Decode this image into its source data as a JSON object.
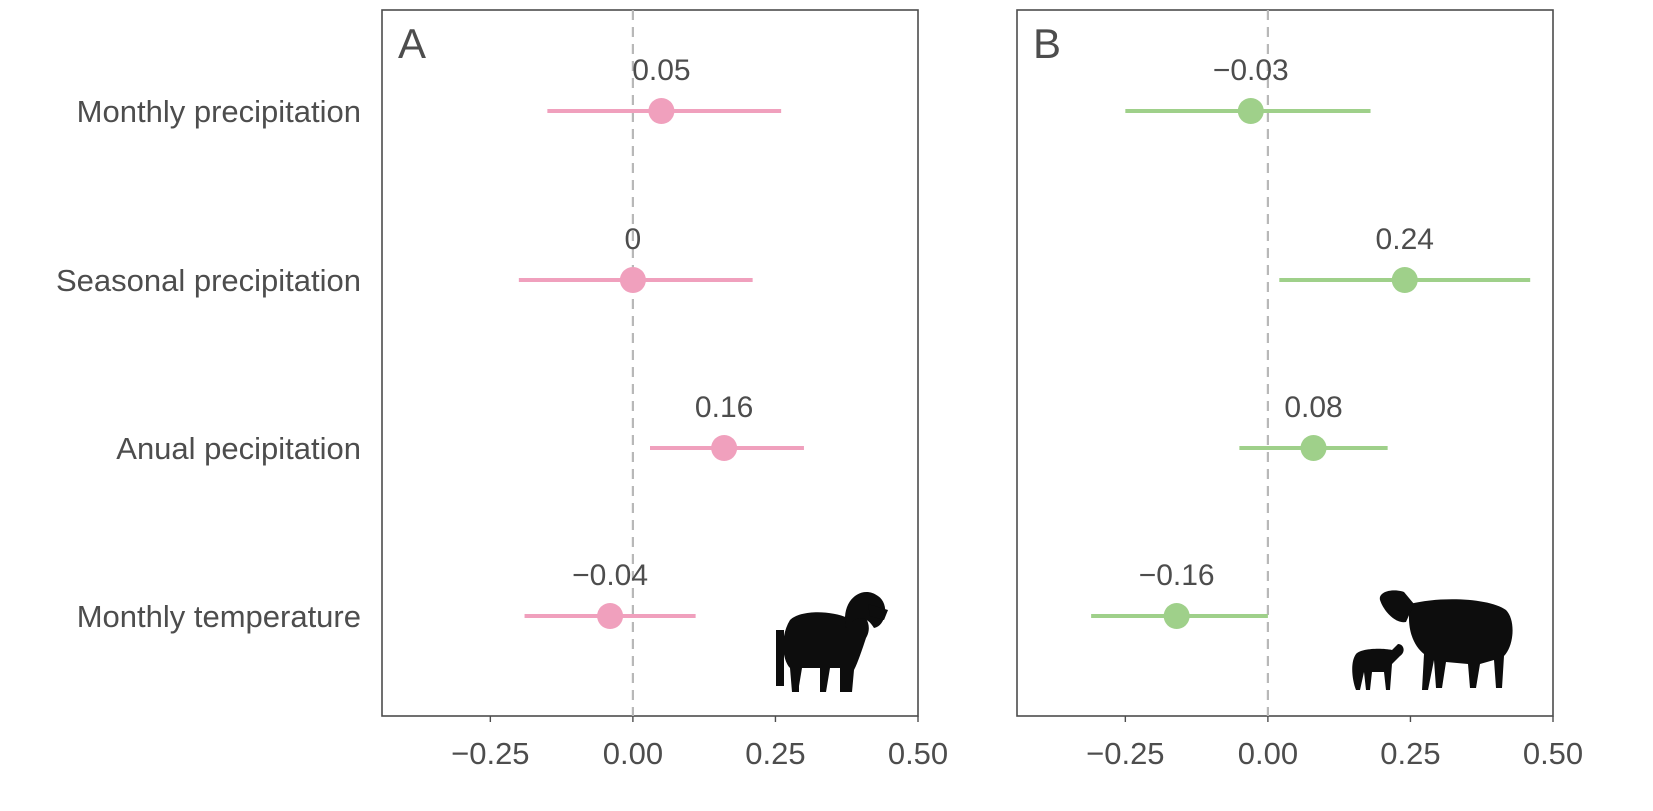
{
  "chart_data": {
    "type": "forest",
    "categories": [
      "Monthly precipitation",
      "Seasonal precipitation",
      "Anual pecipitation",
      "Monthly temperature"
    ],
    "xlim": [
      -0.44,
      0.5
    ],
    "xticks": [
      -0.25,
      0.0,
      0.25,
      0.5
    ],
    "xtick_labels": [
      "−0.25",
      "0.00",
      "0.25",
      "0.50"
    ],
    "reference_line": 0,
    "grid": false,
    "panels": [
      {
        "label": "A",
        "color": "#f0a0bd",
        "icon": "mouflon-ram-silhouette-icon",
        "points": [
          {
            "category": "Monthly precipitation",
            "estimate": 0.05,
            "lower": -0.15,
            "upper": 0.26,
            "label": "0.05"
          },
          {
            "category": "Seasonal precipitation",
            "estimate": 0.0,
            "lower": -0.2,
            "upper": 0.21,
            "label": "0"
          },
          {
            "category": "Anual pecipitation",
            "estimate": 0.16,
            "lower": 0.03,
            "upper": 0.3,
            "label": "0.16"
          },
          {
            "category": "Monthly temperature",
            "estimate": -0.04,
            "lower": -0.19,
            "upper": 0.11,
            "label": "−0.04"
          }
        ]
      },
      {
        "label": "B",
        "color": "#9fd08a",
        "icon": "ewe-and-lamb-silhouette-icon",
        "points": [
          {
            "category": "Monthly precipitation",
            "estimate": -0.03,
            "lower": -0.25,
            "upper": 0.18,
            "label": "−0.03"
          },
          {
            "category": "Seasonal precipitation",
            "estimate": 0.24,
            "lower": 0.02,
            "upper": 0.46,
            "label": "0.24"
          },
          {
            "category": "Anual pecipitation",
            "estimate": 0.08,
            "lower": -0.05,
            "upper": 0.21,
            "label": "0.08"
          },
          {
            "category": "Monthly temperature",
            "estimate": -0.16,
            "lower": -0.31,
            "upper": 0.0,
            "label": "−0.16"
          }
        ]
      }
    ]
  }
}
